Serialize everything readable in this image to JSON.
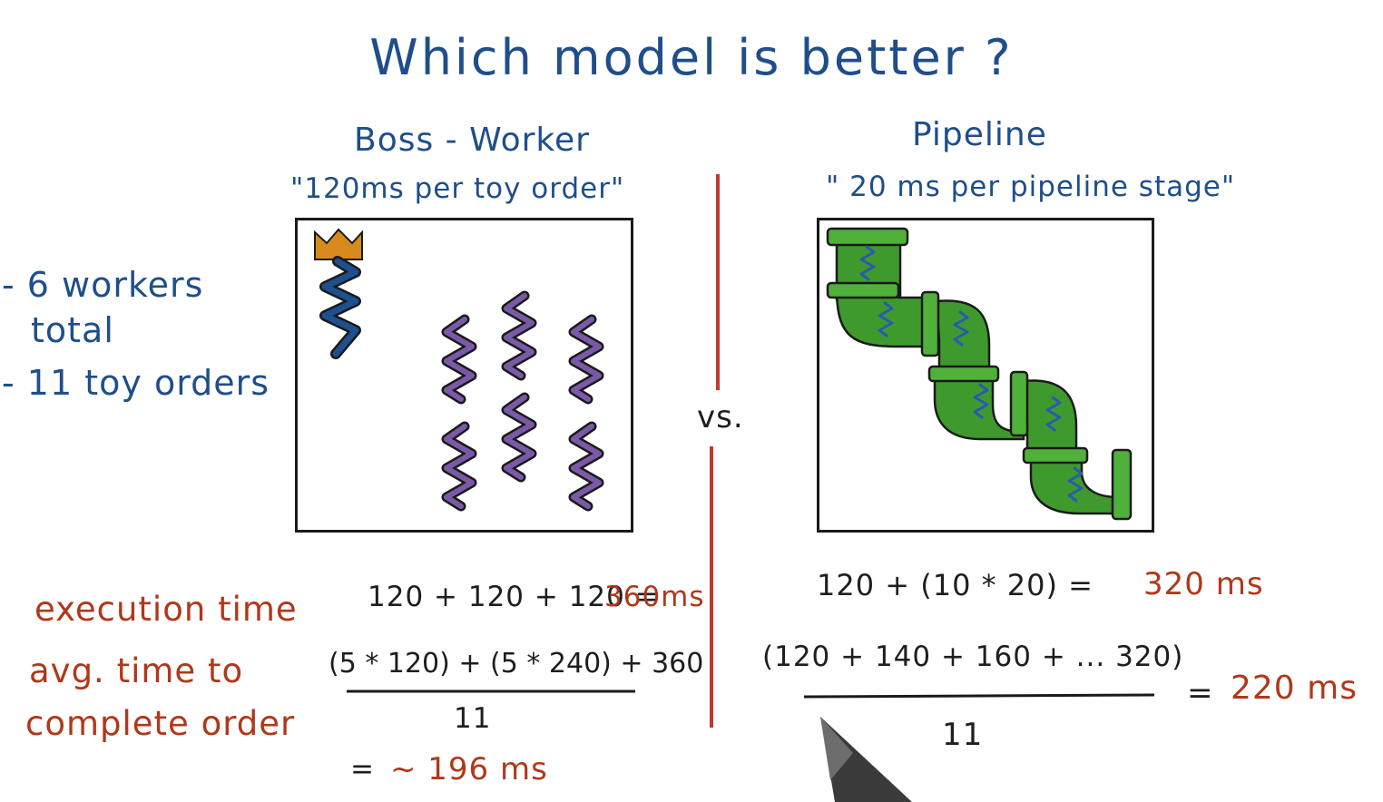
{
  "title": "Which model is better ?",
  "boss_worker": {
    "heading": "Boss - Worker",
    "quote": "\"120ms per toy order\"",
    "setup": [
      "- 6 workers",
      "total",
      "- 11 toy orders"
    ],
    "exec_lhs": "120 + 120 + 120 =",
    "exec_result": "360ms",
    "avg_numerator": "(5 * 120) + (5 * 240) + 360",
    "avg_denominator": "11",
    "avg_eq": "=",
    "avg_result": "~ 196 ms"
  },
  "versus": "vs.",
  "pipeline": {
    "heading": "Pipeline",
    "quote": "\" 20 ms per pipeline stage\"",
    "exec_lhs": "120 + (10 * 20) =",
    "exec_result": "320 ms",
    "avg_numerator": "(120 + 140 + 160 + ... 320)",
    "avg_denominator": "11",
    "avg_eq": "=",
    "avg_result": "220 ms"
  },
  "labels": {
    "execution_time": "execution time",
    "avg_time_1": "avg. time to",
    "avg_time_2": "complete order"
  },
  "colors": {
    "heading_blue": "#1f4e8a",
    "result_red": "#b0381a",
    "divider_red": "#c0392b",
    "boss_crown": "#d98a1e",
    "boss_body": "#1e4f8f",
    "worker_purple": "#7a5aa8",
    "pipe_green": "#3f9a2e"
  },
  "icons": [
    "crown-icon",
    "boss-thread-icon",
    "worker-thread-icon",
    "pipe-segment-icon"
  ]
}
